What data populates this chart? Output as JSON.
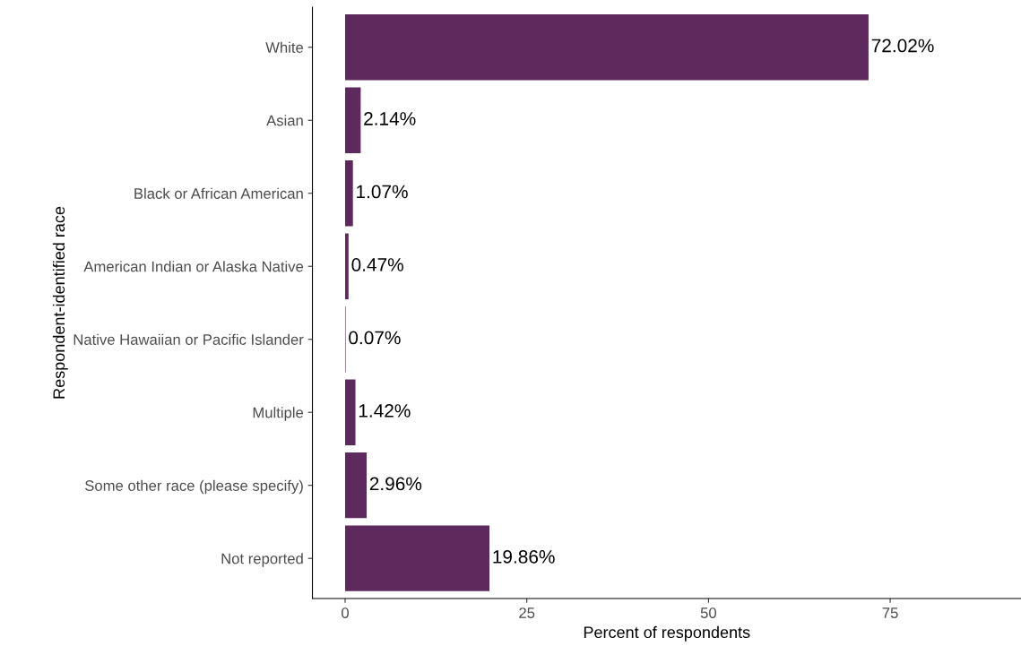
{
  "chart_data": {
    "type": "bar",
    "orientation": "horizontal",
    "xlabel": "Percent of respondents",
    "ylabel": "Respondent-identified race",
    "categories": [
      "White",
      "Asian",
      "Black or African American",
      "American Indian or Alaska Native",
      "Native Hawaiian or Pacific Islander",
      "Multiple",
      "Some other race (please specify)",
      "Not reported"
    ],
    "values": [
      72.02,
      2.14,
      1.07,
      0.47,
      0.07,
      1.42,
      2.96,
      19.86
    ],
    "value_labels": [
      "72.02%",
      "2.14%",
      "1.07%",
      "0.47%",
      "0.07%",
      "1.42%",
      "2.96%",
      "19.86%"
    ],
    "color": "#5e2a5e",
    "xlim": [
      -4.5,
      93
    ],
    "xticks": [
      0,
      25,
      50,
      75
    ],
    "grid": false,
    "legend": false
  }
}
